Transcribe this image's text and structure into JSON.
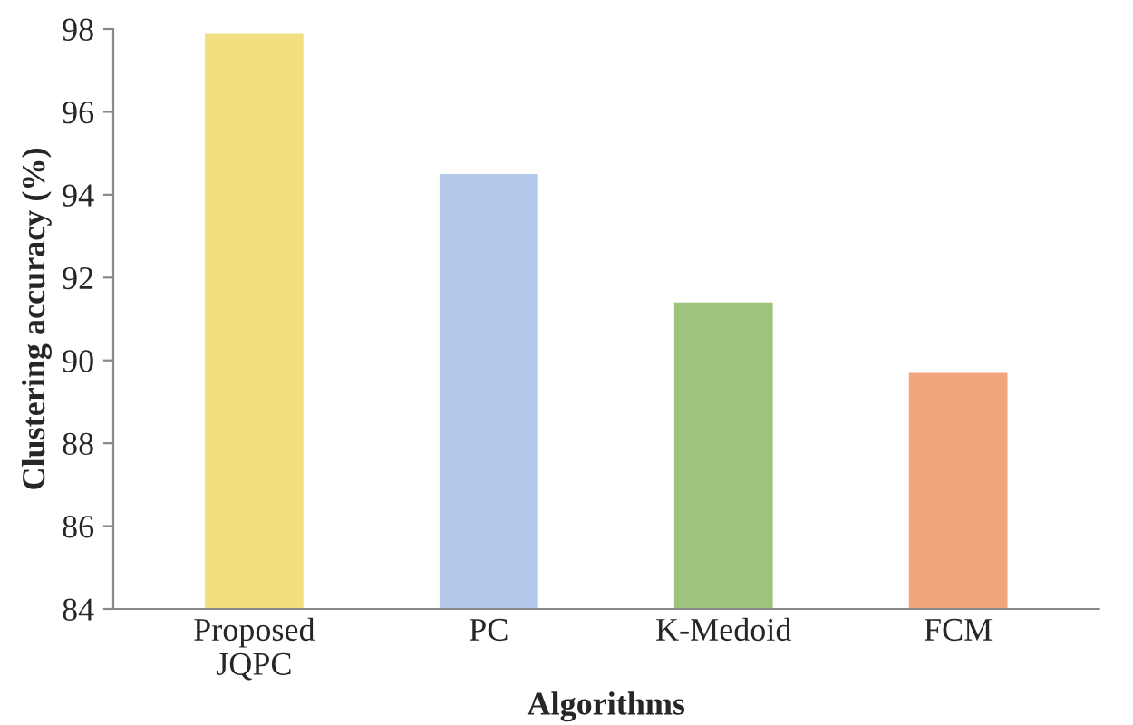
{
  "chart_data": {
    "type": "bar",
    "xlabel": "Algorithms",
    "ylabel": "Clustering accuracy (%)",
    "categories": [
      "Proposed\nJQPC",
      "PC",
      "K-Medoid",
      "FCM"
    ],
    "values": [
      97.9,
      94.5,
      91.4,
      89.7
    ],
    "colors": [
      "#f2df80",
      "#b4c8ea",
      "#9dc47c",
      "#f0a57c"
    ],
    "ylim": [
      84,
      98
    ],
    "yticks": [
      84,
      86,
      88,
      90,
      92,
      94,
      96,
      98
    ],
    "grid": false
  }
}
